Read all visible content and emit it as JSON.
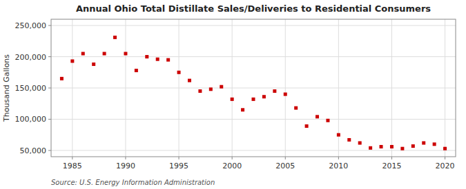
{
  "chart_data": {
    "type": "scatter",
    "title": "Annual Ohio Total Distillate Sales/Deliveries to Residential Consumers",
    "ylabel": "Thousand Gallons",
    "source": "Source: U.S. Energy Information Administration",
    "color": "#cc0000",
    "marker": "square",
    "grid": true,
    "xlim": [
      1983,
      2021
    ],
    "ylim": [
      40000,
      260000
    ],
    "xticks": [
      1985,
      1990,
      1995,
      2000,
      2005,
      2010,
      2015,
      2020
    ],
    "yticks": [
      {
        "value": 50000,
        "label": "50,000"
      },
      {
        "value": 100000,
        "label": "100,000"
      },
      {
        "value": 150000,
        "label": "150,000"
      },
      {
        "value": 200000,
        "label": "200,000"
      },
      {
        "value": 250000,
        "label": "250,000"
      }
    ],
    "x": [
      1984,
      1985,
      1986,
      1987,
      1988,
      1989,
      1990,
      1991,
      1992,
      1993,
      1994,
      1995,
      1996,
      1997,
      1998,
      1999,
      2000,
      2001,
      2002,
      2003,
      2004,
      2005,
      2006,
      2007,
      2008,
      2009,
      2010,
      2011,
      2012,
      2013,
      2014,
      2015,
      2016,
      2017,
      2018,
      2019,
      2020
    ],
    "values": [
      165000,
      193000,
      205000,
      188000,
      205000,
      231000,
      205000,
      178000,
      200000,
      196000,
      195000,
      175000,
      162000,
      145000,
      148000,
      152000,
      132000,
      115000,
      132000,
      136000,
      145000,
      140000,
      118000,
      89000,
      104000,
      98000,
      75000,
      67000,
      62000,
      54000,
      56000,
      56000,
      53000,
      57000,
      62000,
      60000,
      53000
    ]
  }
}
